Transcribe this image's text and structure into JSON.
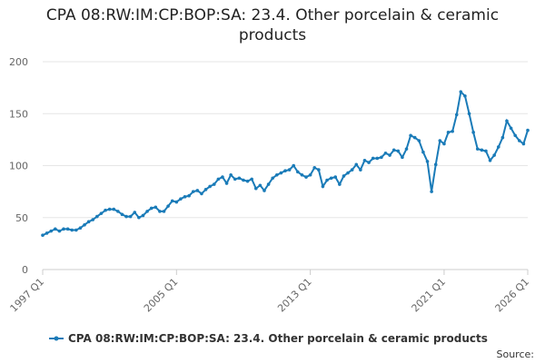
{
  "chart_data": {
    "type": "line",
    "title": "CPA 08:RW:IM:CP:BOP:SA: 23.4. Other porcelain & ceramic products",
    "source": "Source:",
    "categories": [
      "1997 Q1",
      null,
      null,
      null,
      null,
      null,
      null,
      null,
      null,
      null,
      null,
      null,
      null,
      null,
      null,
      null,
      null,
      null,
      null,
      null,
      null,
      null,
      null,
      null,
      null,
      null,
      null,
      null,
      null,
      null,
      null,
      null,
      "2005 Q1",
      null,
      null,
      null,
      null,
      null,
      null,
      null,
      null,
      null,
      null,
      null,
      null,
      null,
      null,
      null,
      null,
      null,
      null,
      null,
      null,
      null,
      null,
      null,
      null,
      null,
      null,
      null,
      null,
      null,
      null,
      null,
      "2013 Q1",
      null,
      null,
      null,
      null,
      null,
      null,
      null,
      null,
      null,
      null,
      null,
      null,
      null,
      null,
      null,
      null,
      null,
      null,
      null,
      null,
      null,
      null,
      null,
      null,
      null,
      null,
      null,
      null,
      null,
      null,
      null,
      "2021 Q1",
      null,
      null,
      null,
      null,
      null,
      null,
      null,
      null,
      null,
      null,
      null,
      null,
      null,
      null,
      null,
      null,
      null,
      null,
      null,
      "2026 Q1"
    ],
    "series": [
      {
        "name": "CPA 08:RW:IM:CP:BOP:SA: 23.4. Other porcelain & ceramic products",
        "color": "#1a7bb8",
        "values": [
          33,
          35,
          37,
          39,
          37,
          39,
          39,
          38,
          38,
          40,
          43,
          46,
          48,
          51,
          54,
          57,
          58,
          58,
          56,
          53,
          51,
          51,
          55,
          50,
          52,
          56,
          59,
          60,
          56,
          56,
          61,
          66,
          65,
          68,
          70,
          71,
          75,
          76,
          73,
          77,
          80,
          82,
          87,
          89,
          83,
          91,
          87,
          88,
          86,
          85,
          87,
          78,
          81,
          76,
          82,
          88,
          91,
          93,
          95,
          96,
          100,
          94,
          91,
          89,
          91,
          98,
          96,
          80,
          86,
          88,
          89,
          82,
          90,
          93,
          96,
          101,
          96,
          105,
          103,
          107,
          107,
          108,
          112,
          110,
          115,
          114,
          108,
          116,
          129,
          127,
          124,
          113,
          104,
          75,
          101,
          124,
          121,
          132,
          133,
          149,
          171,
          167,
          150,
          132,
          116,
          115,
          114,
          105,
          110,
          118,
          127,
          143,
          136,
          129,
          124,
          121,
          134
        ]
      }
    ],
    "ylim": [
      0,
      200
    ],
    "yticks": [
      0,
      50,
      100,
      150,
      200
    ],
    "grid": true
  }
}
